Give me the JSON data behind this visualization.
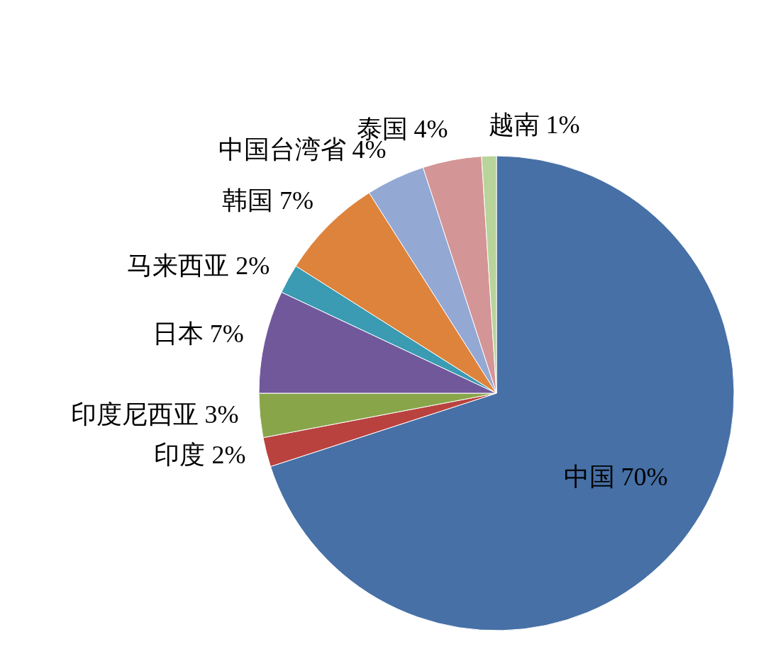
{
  "chart_data": {
    "type": "pie",
    "categories": [
      "中国",
      "印度",
      "印度尼西亚",
      "日本",
      "马来西亚",
      "韩国",
      "中国台湾省",
      "泰国",
      "越南"
    ],
    "values": [
      70,
      2,
      3,
      7,
      2,
      7,
      4,
      4,
      1
    ],
    "colors": [
      "#4670a6",
      "#b9423f",
      "#89a54a",
      "#71589a",
      "#3a9bb2",
      "#de833c",
      "#93a8d3",
      "#d49596",
      "#b8d49a"
    ],
    "value_labels": [
      "70%",
      "2%",
      "3%",
      "7%",
      "2%",
      "7%",
      "4%",
      "4%",
      "1%"
    ]
  }
}
